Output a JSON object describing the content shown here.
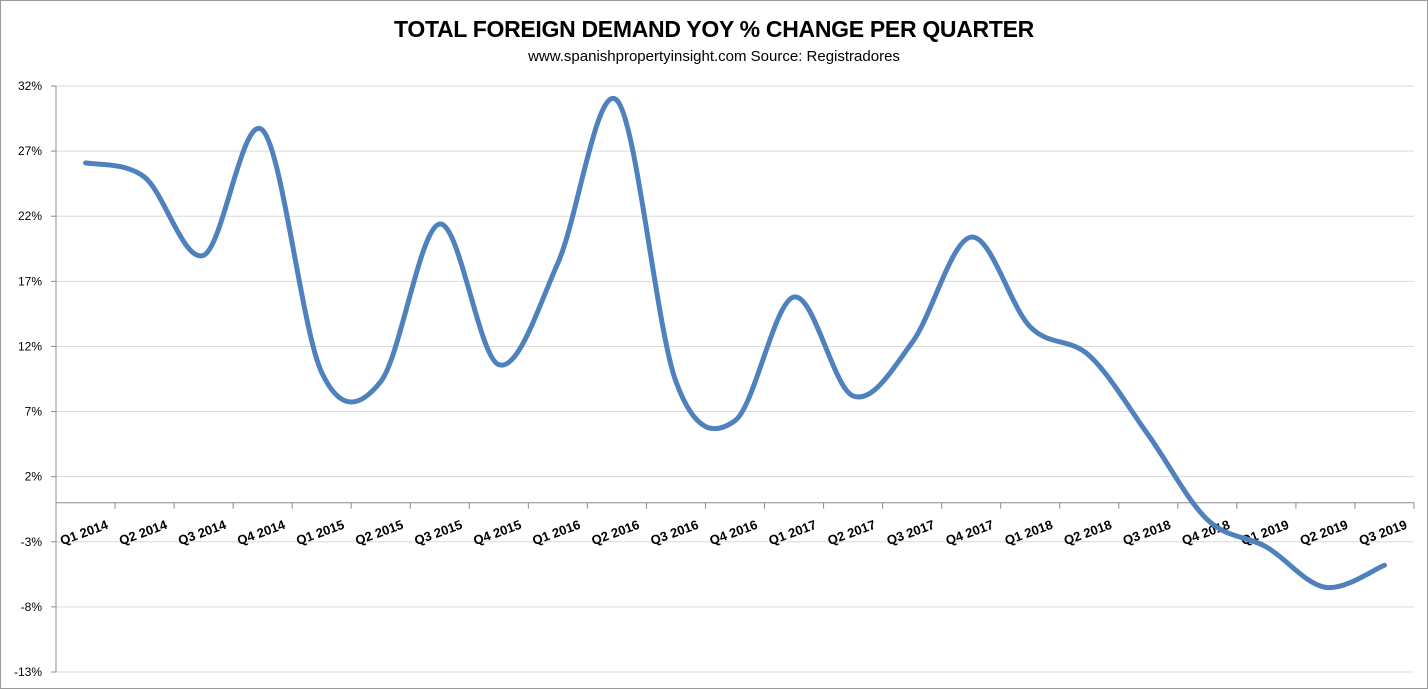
{
  "chart_data": {
    "type": "line",
    "title": "TOTAL FOREIGN DEMAND YOY % CHANGE PER QUARTER",
    "subtitle": "www.spanishpropertyinsight.com Source: Registradores",
    "xlabel": "",
    "ylabel": "",
    "categories": [
      "Q1 2014",
      "Q2 2014",
      "Q3 2014",
      "Q4 2014",
      "Q1 2015",
      "Q2 2015",
      "Q3 2015",
      "Q4 2015",
      "Q1 2016",
      "Q2 2016",
      "Q3 2016",
      "Q4 2016",
      "Q1 2017",
      "Q2 2017",
      "Q3 2017",
      "Q4 2017",
      "Q1 2018",
      "Q2 2018",
      "Q3 2018",
      "Q4 2018",
      "Q1 2019",
      "Q2 2019",
      "Q3 2019"
    ],
    "series": [
      {
        "values": [
          26.1,
          25.0,
          19.0,
          28.6,
          10.0,
          9.3,
          21.4,
          10.6,
          18.4,
          30.9,
          9.3,
          6.3,
          15.8,
          8.2,
          12.3,
          20.4,
          13.5,
          11.3,
          5.2,
          -1.3,
          -3.4,
          -6.5,
          -4.8
        ],
        "color": "#4f81bd"
      }
    ],
    "ylim": [
      -13,
      32
    ],
    "yticks": [
      -13,
      -8,
      -3,
      2,
      7,
      12,
      17,
      22,
      27,
      32
    ],
    "ytick_labels": [
      "-13%",
      "-8%",
      "-3%",
      "2%",
      "7%",
      "12%",
      "17%",
      "22%",
      "27%",
      "32%"
    ],
    "grid": true,
    "legend": "none",
    "smooth": true
  }
}
